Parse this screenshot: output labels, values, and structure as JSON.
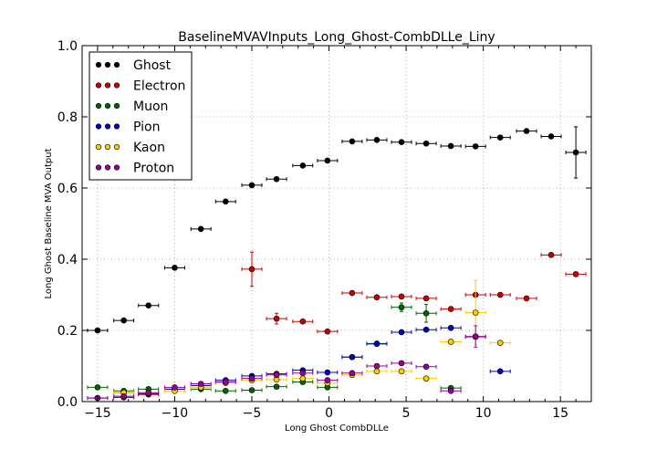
{
  "chart_data": {
    "type": "scatter",
    "title": "BaselineMVAVInputs_Long_Ghost-CombDLLe_Liny",
    "xlabel": "Long Ghost CombDLLe",
    "ylabel": "Long Ghost Baseline MVA Output",
    "xlim": [
      -16,
      17
    ],
    "ylim": [
      0.0,
      1.0
    ],
    "xticks": [
      "−15",
      "−10",
      "−5",
      "0",
      "5",
      "10",
      "15"
    ],
    "yticks": [
      "0.0",
      "0.2",
      "0.4",
      "0.6",
      "0.8",
      "1.0"
    ],
    "grid": true,
    "legend_position": "top-left",
    "x_half_width": 0.65,
    "series": [
      {
        "name": "Ghost",
        "color": "#000000",
        "points": [
          {
            "x": -15.0,
            "y": 0.2
          },
          {
            "x": -13.3,
            "y": 0.228
          },
          {
            "x": -11.7,
            "y": 0.27
          },
          {
            "x": -10.0,
            "y": 0.376
          },
          {
            "x": -8.3,
            "y": 0.485
          },
          {
            "x": -6.7,
            "y": 0.562
          },
          {
            "x": -5.0,
            "y": 0.608
          },
          {
            "x": -3.4,
            "y": 0.625
          },
          {
            "x": -1.7,
            "y": 0.663
          },
          {
            "x": -0.1,
            "y": 0.677
          },
          {
            "x": 1.5,
            "y": 0.731
          },
          {
            "x": 3.1,
            "y": 0.735
          },
          {
            "x": 4.7,
            "y": 0.729
          },
          {
            "x": 6.3,
            "y": 0.725
          },
          {
            "x": 7.9,
            "y": 0.718
          },
          {
            "x": 9.5,
            "y": 0.717
          },
          {
            "x": 11.1,
            "y": 0.742
          },
          {
            "x": 12.8,
            "y": 0.76
          },
          {
            "x": 14.4,
            "y": 0.745
          },
          {
            "x": 16.0,
            "y": 0.7,
            "err": 0.072
          }
        ]
      },
      {
        "name": "Electron",
        "color": "#cc0000",
        "points": [
          {
            "x": -13.3,
            "y": 0.025
          },
          {
            "x": -11.7,
            "y": 0.02
          },
          {
            "x": -5.0,
            "y": 0.372,
            "err": 0.048
          },
          {
            "x": -3.4,
            "y": 0.233,
            "err": 0.015
          },
          {
            "x": -1.7,
            "y": 0.225
          },
          {
            "x": -0.1,
            "y": 0.197
          },
          {
            "x": 1.5,
            "y": 0.305
          },
          {
            "x": 3.1,
            "y": 0.293
          },
          {
            "x": 4.7,
            "y": 0.295
          },
          {
            "x": 6.3,
            "y": 0.29
          },
          {
            "x": 7.9,
            "y": 0.26
          },
          {
            "x": 9.5,
            "y": 0.3
          },
          {
            "x": 11.1,
            "y": 0.3
          },
          {
            "x": 12.8,
            "y": 0.29
          },
          {
            "x": 14.4,
            "y": 0.412
          },
          {
            "x": 16.0,
            "y": 0.358
          }
        ]
      },
      {
        "name": "Muon",
        "color": "#006600",
        "points": [
          {
            "x": -15.0,
            "y": 0.04
          },
          {
            "x": -13.3,
            "y": 0.03
          },
          {
            "x": -11.7,
            "y": 0.035
          },
          {
            "x": -10.0,
            "y": 0.035
          },
          {
            "x": -8.3,
            "y": 0.035
          },
          {
            "x": -6.7,
            "y": 0.03
          },
          {
            "x": -5.0,
            "y": 0.032
          },
          {
            "x": -3.4,
            "y": 0.042
          },
          {
            "x": -1.7,
            "y": 0.055
          },
          {
            "x": -0.1,
            "y": 0.04
          },
          {
            "x": 1.5,
            "y": 0.125
          },
          {
            "x": 3.1,
            "y": 0.163
          },
          {
            "x": 4.7,
            "y": 0.265,
            "err": 0.012
          },
          {
            "x": 6.3,
            "y": 0.248,
            "err": 0.025
          },
          {
            "x": 7.9,
            "y": 0.038
          }
        ]
      },
      {
        "name": "Pion",
        "color": "#0000cc",
        "points": [
          {
            "x": -15.0,
            "y": 0.01
          },
          {
            "x": -13.3,
            "y": 0.012
          },
          {
            "x": -11.7,
            "y": 0.022
          },
          {
            "x": -10.0,
            "y": 0.035
          },
          {
            "x": -8.3,
            "y": 0.045
          },
          {
            "x": -6.7,
            "y": 0.06
          },
          {
            "x": -5.0,
            "y": 0.072
          },
          {
            "x": -3.4,
            "y": 0.078
          },
          {
            "x": -1.7,
            "y": 0.088
          },
          {
            "x": -0.1,
            "y": 0.082
          },
          {
            "x": 1.5,
            "y": 0.125
          },
          {
            "x": 3.1,
            "y": 0.162
          },
          {
            "x": 4.7,
            "y": 0.195
          },
          {
            "x": 6.3,
            "y": 0.202
          },
          {
            "x": 7.9,
            "y": 0.207
          },
          {
            "x": 9.5,
            "y": 0.182
          },
          {
            "x": 11.1,
            "y": 0.085
          }
        ]
      },
      {
        "name": "Kaon",
        "color": "#ffcc00",
        "points": [
          {
            "x": -13.3,
            "y": 0.025
          },
          {
            "x": -10.0,
            "y": 0.03
          },
          {
            "x": -8.3,
            "y": 0.04
          },
          {
            "x": -6.7,
            "y": 0.052
          },
          {
            "x": -5.0,
            "y": 0.06
          },
          {
            "x": -3.4,
            "y": 0.062
          },
          {
            "x": -1.7,
            "y": 0.065
          },
          {
            "x": -0.1,
            "y": 0.052
          },
          {
            "x": 1.5,
            "y": 0.075
          },
          {
            "x": 3.1,
            "y": 0.085
          },
          {
            "x": 4.7,
            "y": 0.085
          },
          {
            "x": 6.3,
            "y": 0.065
          },
          {
            "x": 7.9,
            "y": 0.168
          },
          {
            "x": 9.5,
            "y": 0.25,
            "err": 0.09
          },
          {
            "x": 11.1,
            "y": 0.165
          }
        ]
      },
      {
        "name": "Proton",
        "color": "#990099",
        "points": [
          {
            "x": -15.0,
            "y": 0.01
          },
          {
            "x": -13.3,
            "y": 0.015
          },
          {
            "x": -11.7,
            "y": 0.025
          },
          {
            "x": -10.0,
            "y": 0.04
          },
          {
            "x": -8.3,
            "y": 0.05
          },
          {
            "x": -6.7,
            "y": 0.055
          },
          {
            "x": -5.0,
            "y": 0.065
          },
          {
            "x": -3.4,
            "y": 0.075
          },
          {
            "x": -1.7,
            "y": 0.08
          },
          {
            "x": -0.1,
            "y": 0.06
          },
          {
            "x": 1.5,
            "y": 0.08
          },
          {
            "x": 3.1,
            "y": 0.1
          },
          {
            "x": 4.7,
            "y": 0.108
          },
          {
            "x": 6.3,
            "y": 0.098
          },
          {
            "x": 7.9,
            "y": 0.03
          },
          {
            "x": 9.5,
            "y": 0.183,
            "err": 0.03
          }
        ]
      }
    ]
  }
}
